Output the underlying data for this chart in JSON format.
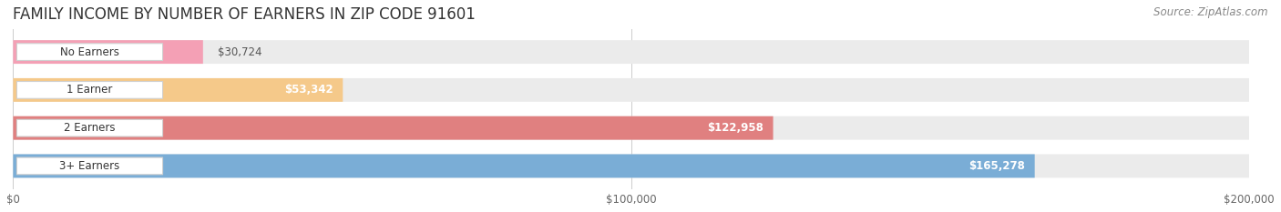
{
  "title": "FAMILY INCOME BY NUMBER OF EARNERS IN ZIP CODE 91601",
  "source": "Source: ZipAtlas.com",
  "categories": [
    "No Earners",
    "1 Earner",
    "2 Earners",
    "3+ Earners"
  ],
  "values": [
    30724,
    53342,
    122958,
    165278
  ],
  "labels": [
    "$30,724",
    "$53,342",
    "$122,958",
    "$165,278"
  ],
  "bar_colors": [
    "#f4a0b5",
    "#f5c98a",
    "#e08080",
    "#7aadd6"
  ],
  "bar_bg_color": "#ebebeb",
  "xlim_max": 200000,
  "xtick_labels": [
    "$0",
    "$100,000",
    "$200,000"
  ],
  "xtick_values": [
    0,
    100000,
    200000
  ],
  "title_fontsize": 12,
  "source_fontsize": 8.5,
  "bar_height": 0.62,
  "figsize": [
    14.06,
    2.33
  ],
  "dpi": 100,
  "label_threshold": 0.2
}
